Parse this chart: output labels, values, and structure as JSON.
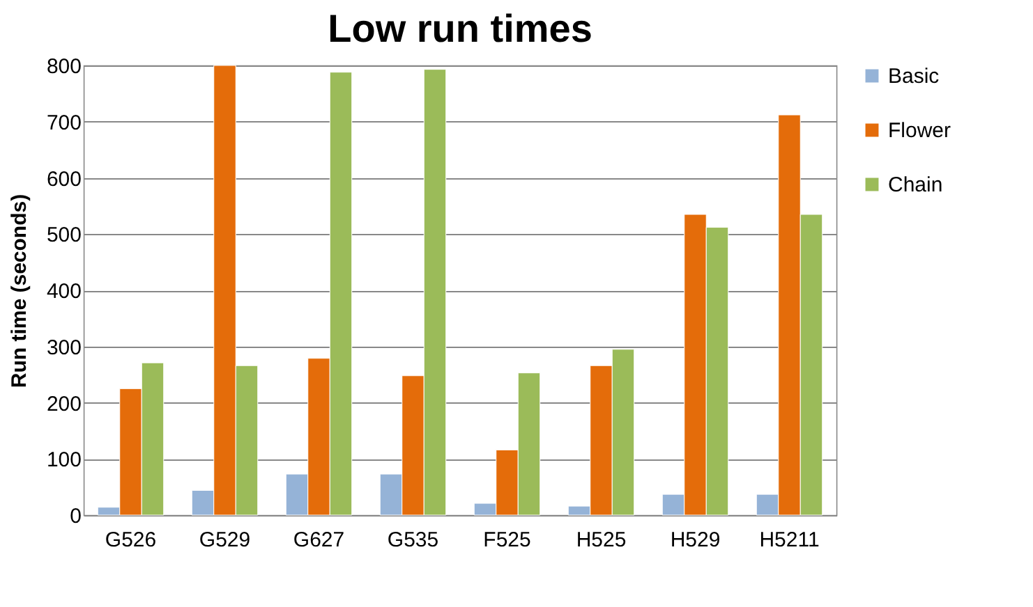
{
  "chart_data": {
    "type": "bar",
    "title": "Low run times",
    "ylabel": "Run time (seconds)",
    "categories": [
      "G526",
      "G529",
      "G627",
      "G535",
      "F525",
      "H525",
      "H529",
      "H5211"
    ],
    "series": [
      {
        "name": "Basic",
        "color": "#95b3d7",
        "values": [
          14,
          44,
          73,
          73,
          21,
          16,
          37,
          37
        ]
      },
      {
        "name": "Flower",
        "color": "#e46c0a",
        "values": [
          225,
          800,
          279,
          248,
          116,
          266,
          535,
          712
        ]
      },
      {
        "name": "Chain",
        "color": "#9bbb59",
        "values": [
          271,
          266,
          788,
          793,
          253,
          295,
          512,
          535
        ]
      }
    ],
    "ylim": [
      0,
      800
    ],
    "yticks": [
      0,
      100,
      200,
      300,
      400,
      500,
      600,
      700,
      800
    ],
    "grid": "y",
    "legend": "right"
  }
}
